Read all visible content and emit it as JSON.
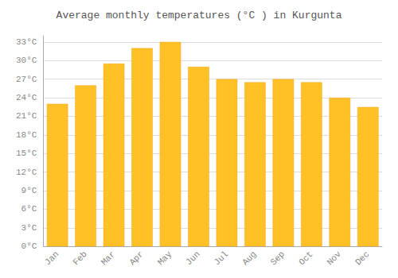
{
  "chart_data": {
    "type": "bar",
    "title": "Average monthly temperatures (°C ) in Kurgunta",
    "categories": [
      "Jan",
      "Feb",
      "Mar",
      "Apr",
      "May",
      "Jun",
      "Jul",
      "Aug",
      "Sep",
      "Oct",
      "Nov",
      "Dec"
    ],
    "values": [
      23,
      26,
      29.5,
      32,
      33,
      29,
      27,
      26.5,
      27,
      26.5,
      24,
      22.5
    ],
    "color": "#FFC125",
    "ylim": [
      0,
      34
    ],
    "yticks": [
      {
        "value": 0,
        "label": "0°C"
      },
      {
        "value": 3,
        "label": "3°C"
      },
      {
        "value": 6,
        "label": "6°C"
      },
      {
        "value": 9,
        "label": "9°C"
      },
      {
        "value": 12,
        "label": "12°C"
      },
      {
        "value": 15,
        "label": "15°C"
      },
      {
        "value": 18,
        "label": "18°C"
      },
      {
        "value": 21,
        "label": "21°C"
      },
      {
        "value": 24,
        "label": "24°C"
      },
      {
        "value": 27,
        "label": "27°C"
      },
      {
        "value": 30,
        "label": "30°C"
      },
      {
        "value": 33,
        "label": "33°C"
      }
    ],
    "grid": true
  }
}
